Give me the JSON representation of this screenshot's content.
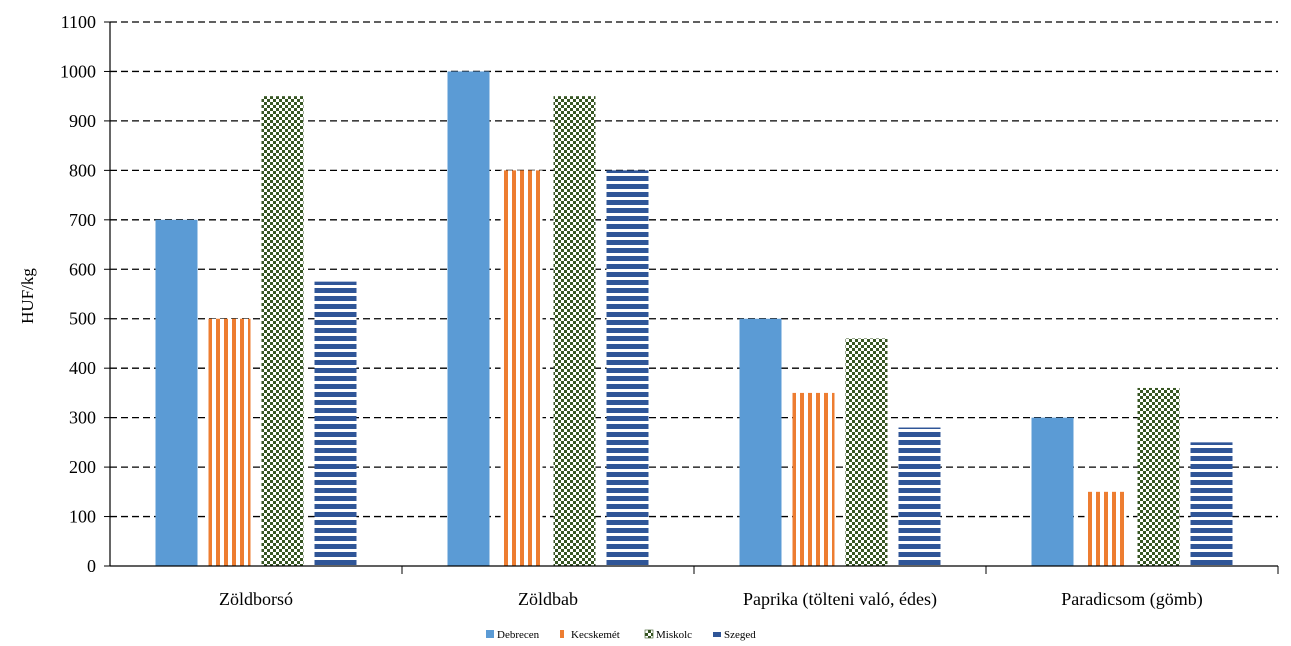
{
  "chart_data": {
    "type": "bar",
    "ylabel": "HUF/kg",
    "ylim": [
      0,
      1100
    ],
    "ytick_step": 100,
    "grid": true,
    "legend_position": "bottom",
    "categories": [
      "Zöldborsó",
      "Zöldbab",
      "Paprika (tölteni való, édes)",
      "Paradicsom (gömb)"
    ],
    "series": [
      {
        "name": "Debrecen",
        "values": [
          700,
          1000,
          500,
          300
        ],
        "color": "#5b9bd5",
        "pattern": "solid"
      },
      {
        "name": "Kecskemét",
        "values": [
          500,
          800,
          350,
          150
        ],
        "color": "#ed7d31",
        "pattern": "vertical-stripes"
      },
      {
        "name": "Miskolc",
        "values": [
          950,
          950,
          460,
          360
        ],
        "color": "#375623",
        "pattern": "checker"
      },
      {
        "name": "Szeged",
        "values": [
          575,
          800,
          280,
          250
        ],
        "color": "#2f5597",
        "pattern": "horizontal-stripes"
      }
    ]
  }
}
